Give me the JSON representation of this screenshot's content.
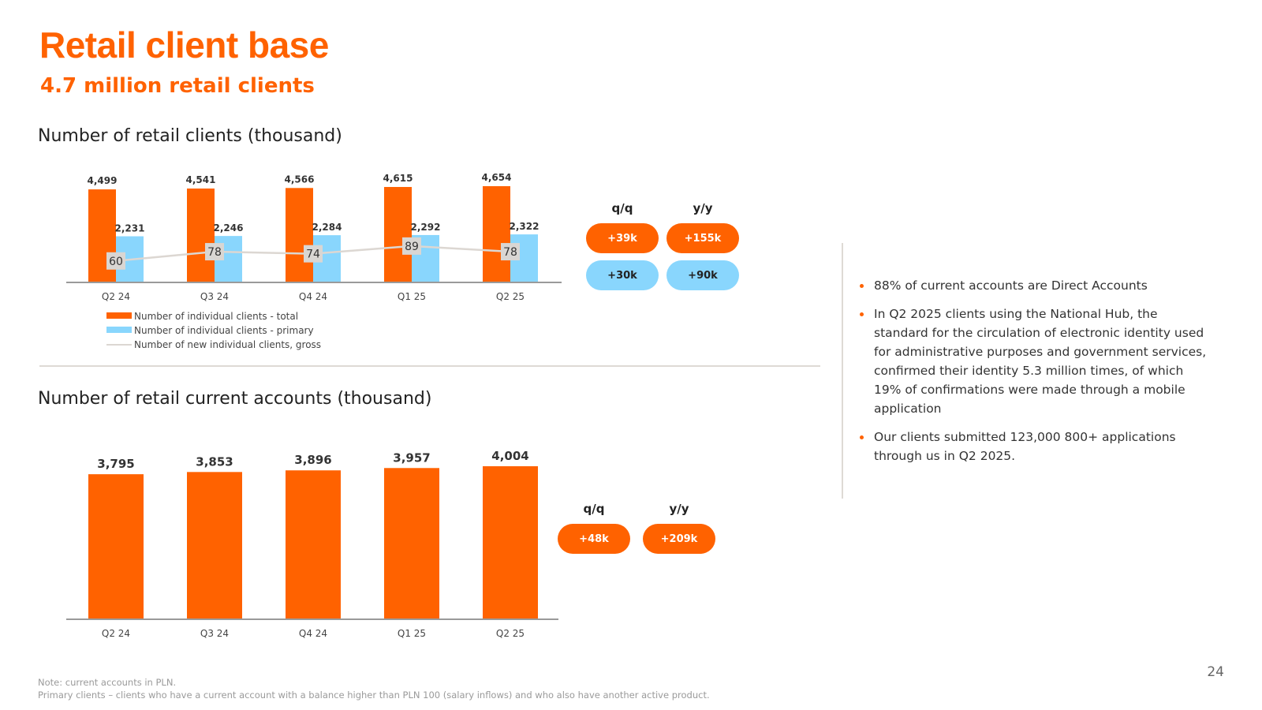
{
  "header": {
    "title": "Retail client base",
    "subtitle": "4.7 million retail clients"
  },
  "chart_data": [
    {
      "type": "bar",
      "title": "Number of retail clients (thousand)",
      "categories": [
        "Q2 24",
        "Q3 24",
        "Q4 24",
        "Q1 25",
        "Q2 25"
      ],
      "series": [
        {
          "name": "Number of individual clients - total",
          "values": [
            4499,
            4541,
            4566,
            4615,
            4654
          ],
          "labels": [
            "4,499",
            "4,541",
            "4,566",
            "4,615",
            "4,654"
          ],
          "color": "#FF6200"
        },
        {
          "name": "Number of individual clients - primary",
          "values": [
            2231,
            2246,
            2284,
            2292,
            2322
          ],
          "labels": [
            "2,231",
            "2,246",
            "2,284",
            "2,292",
            "2,322"
          ],
          "color": "#89D6FD"
        },
        {
          "name": "Number of new individual clients, gross",
          "type": "line",
          "values": [
            60,
            78,
            74,
            89,
            78
          ],
          "labels": [
            "60",
            "78",
            "74",
            "89",
            "78"
          ],
          "color": "#dcd7d2"
        }
      ],
      "legend_position": "bottom-left"
    },
    {
      "type": "bar",
      "title": "Number of retail current accounts (thousand)",
      "categories": [
        "Q2 24",
        "Q3 24",
        "Q4 24",
        "Q1 25",
        "Q2 25"
      ],
      "series": [
        {
          "name": "Number of retail current accounts",
          "values": [
            3795,
            3853,
            3896,
            3957,
            4004
          ],
          "labels": [
            "3,795",
            "3,853",
            "3,896",
            "3,957",
            "4,004"
          ],
          "color": "#FF6200"
        }
      ]
    }
  ],
  "changes_clients": {
    "qq_label": "q/q",
    "yy_label": "y/y",
    "total_qq": "+39k",
    "total_yy": "+155k",
    "primary_qq": "+30k",
    "primary_yy": "+90k"
  },
  "changes_accounts": {
    "qq_label": "q/q",
    "yy_label": "y/y",
    "qq": "+48k",
    "yy": "+209k"
  },
  "bullets": [
    "88% of current accounts are Direct Accounts",
    "In Q2 2025 clients using the National Hub, the standard for the circulation of electronic identity used for administrative purposes and government services, confirmed their identity 5.3 million times, of which 19% of confirmations were made through a mobile application",
    "Our clients submitted 123,000 800+ applications through us in Q2 2025."
  ],
  "notes": [
    "Note: current accounts in PLN.",
    "Primary clients – clients who have a current account with a balance higher than PLN 100 (salary inflows) and who also have another active product."
  ],
  "page_number": "24",
  "colors": {
    "accent": "#FF6200",
    "secondary": "#89D6FD",
    "line": "#dcd7d2"
  }
}
